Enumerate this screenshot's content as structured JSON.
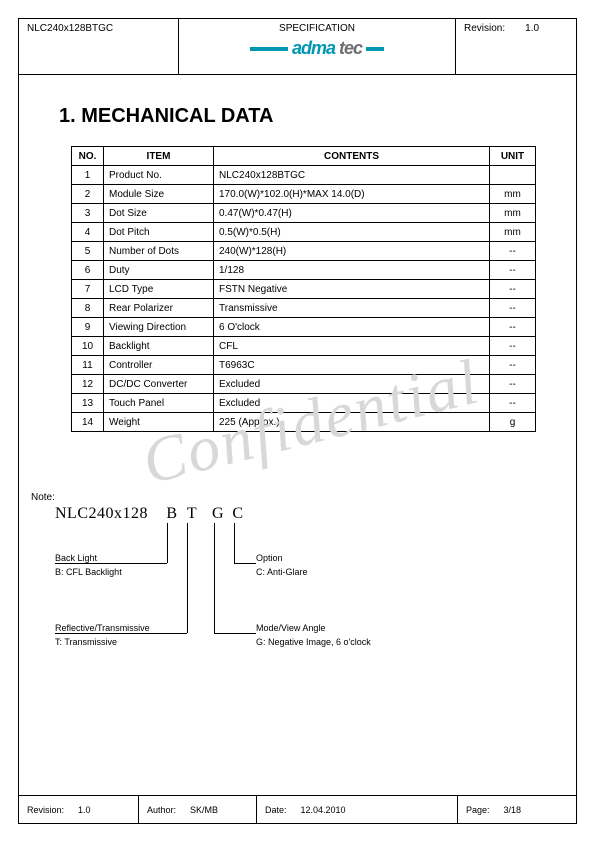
{
  "header": {
    "part_no": "NLC240x128BTGC",
    "spec_label": "SPECIFICATION",
    "revision_label": "Revision:",
    "revision_value": "1.0",
    "logo_brand_a": "adma",
    "logo_brand_b": "tec",
    "logo_color_a": "#0097b2",
    "logo_color_b": "#6b6f72"
  },
  "section_title": "1. MECHANICAL DATA",
  "table": {
    "columns": [
      "NO.",
      "ITEM",
      "CONTENTS",
      "UNIT"
    ],
    "rows": [
      {
        "no": "1",
        "item": "Product No.",
        "contents": "NLC240x128BTGC",
        "unit": ""
      },
      {
        "no": "2",
        "item": "Module Size",
        "contents": "170.0(W)*102.0(H)*MAX 14.0(D)",
        "unit": "mm"
      },
      {
        "no": "3",
        "item": "Dot Size",
        "contents": "0.47(W)*0.47(H)",
        "unit": "mm"
      },
      {
        "no": "4",
        "item": "Dot Pitch",
        "contents": "0.5(W)*0.5(H)",
        "unit": "mm"
      },
      {
        "no": "5",
        "item": "Number of Dots",
        "contents": "240(W)*128(H)",
        "unit": "--"
      },
      {
        "no": "6",
        "item": "Duty",
        "contents": "1/128",
        "unit": "--"
      },
      {
        "no": "7",
        "item": "LCD Type",
        "contents": "FSTN Negative",
        "unit": "--"
      },
      {
        "no": "8",
        "item": "Rear Polarizer",
        "contents": "Transmissive",
        "unit": "--"
      },
      {
        "no": "9",
        "item": "Viewing Direction",
        "contents": "6 O'clock",
        "unit": "--"
      },
      {
        "no": "10",
        "item": "Backlight",
        "contents": "CFL",
        "unit": "--"
      },
      {
        "no": "11",
        "item": "Controller",
        "contents": "T6963C",
        "unit": "--"
      },
      {
        "no": "12",
        "item": "DC/DC Converter",
        "contents": "Excluded",
        "unit": "--"
      },
      {
        "no": "13",
        "item": "Touch Panel",
        "contents": "Excluded",
        "unit": "--"
      },
      {
        "no": "14",
        "item": "Weight",
        "contents": "225 (Approx.)",
        "unit": "g"
      }
    ]
  },
  "watermark": "Confidential",
  "note": {
    "label": "Note:",
    "code_base": "NLC240x128",
    "letters": [
      "B",
      "T",
      "G",
      "C"
    ],
    "callouts": {
      "backlight_title": "Back Light",
      "backlight_desc": "B: CFL Backlight",
      "transmissive_title": "Reflective/Transmissive",
      "transmissive_desc": "T: Transmissive",
      "mode_title": "Mode/View Angle",
      "mode_desc": "G: Negative Image, 6 o'clock",
      "option_title": "Option",
      "option_desc": "C: Anti-Glare"
    }
  },
  "footer": {
    "revision_label": "Revision:",
    "revision_value": "1.0",
    "author_label": "Author:",
    "author_value": "SK/MB",
    "date_label": "Date:",
    "date_value": "12.04.2010",
    "page_label": "Page:",
    "page_value": "3/18"
  }
}
